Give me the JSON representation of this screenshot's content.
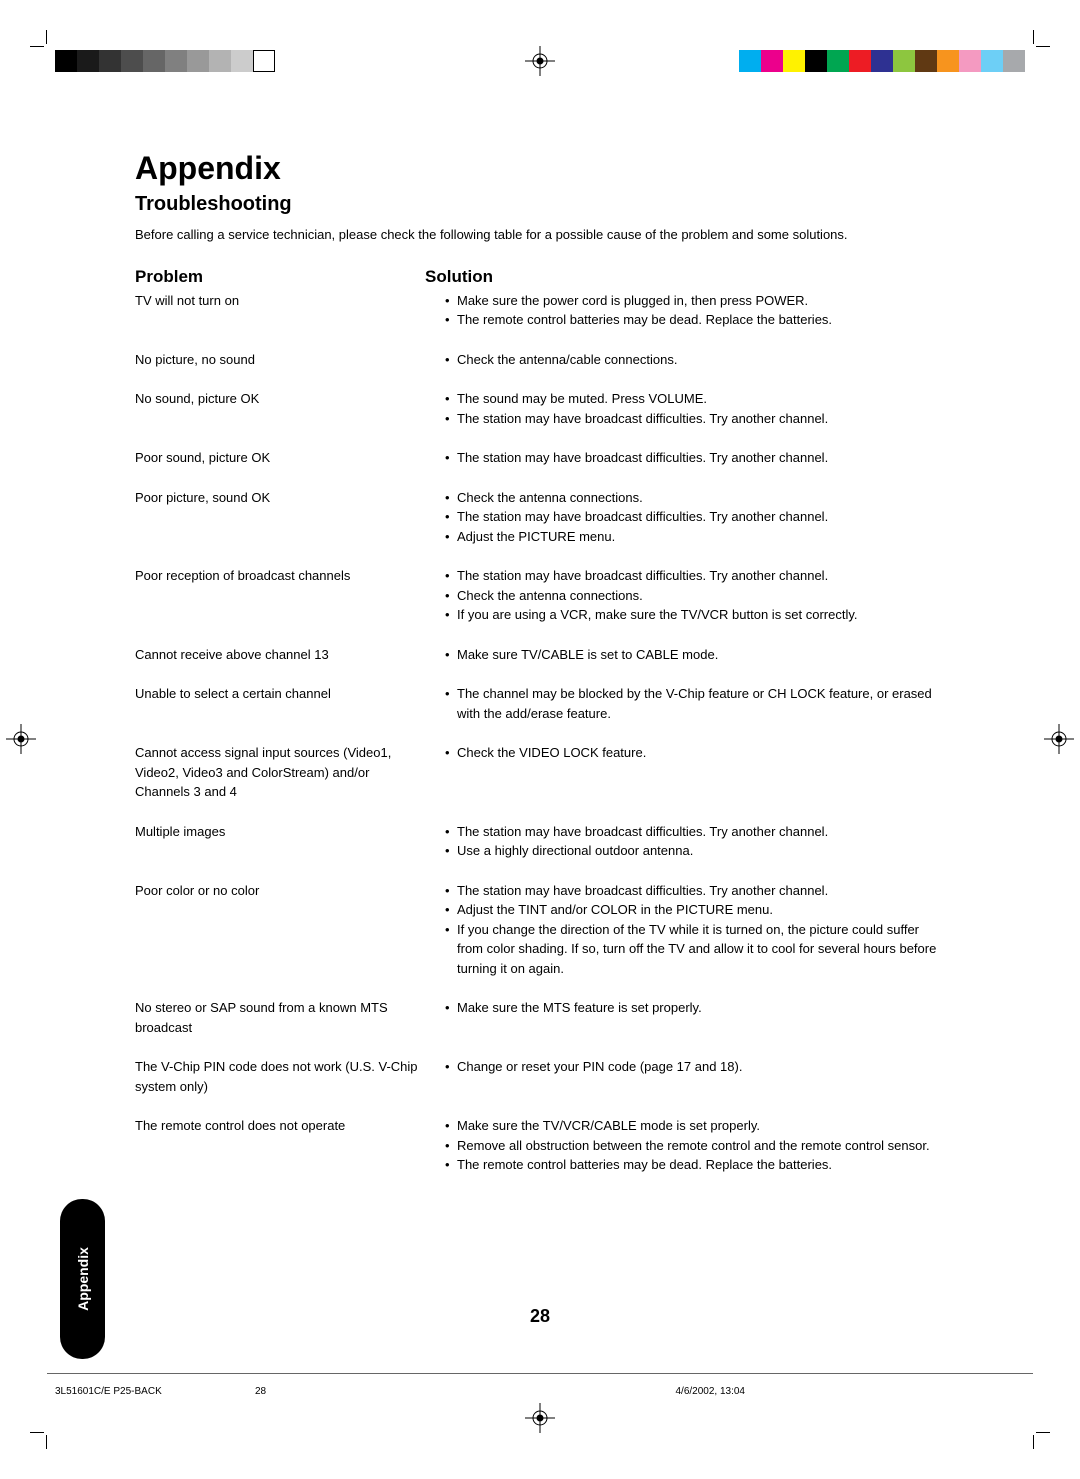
{
  "printer_marks": {
    "left_bar_colors": [
      "#000000",
      "#1a1a1a",
      "#333333",
      "#4d4d4d",
      "#666666",
      "#808080",
      "#999999",
      "#b3b3b3",
      "#cccccc",
      "#ffffff"
    ],
    "right_bar_colors": [
      "#00aeef",
      "#ec008c",
      "#fff200",
      "#000000",
      "#00a651",
      "#ed1c24",
      "#2e3192",
      "#8dc63f",
      "#603913",
      "#f7941e",
      "#f49ac1",
      "#6dcff6",
      "#a7a9ac"
    ]
  },
  "headings": {
    "title": "Appendix",
    "subtitle": "Troubleshooting",
    "intro": "Before calling a service technician, please check the following table for a possible cause of the problem and some solutions.",
    "problem_header": "Problem",
    "solution_header": "Solution"
  },
  "troubleshooting": [
    {
      "problem": "TV will not turn on",
      "solutions": [
        "Make sure the power cord is plugged in, then press POWER.",
        "The remote control batteries may be dead. Replace the batteries."
      ]
    },
    {
      "problem": "No picture, no sound",
      "solutions": [
        "Check the antenna/cable connections."
      ]
    },
    {
      "problem": "No sound, picture OK",
      "solutions": [
        "The sound may be muted. Press VOLUME.",
        "The station may have broadcast difficulties. Try another channel."
      ]
    },
    {
      "problem": "Poor sound, picture OK",
      "solutions": [
        "The station may have broadcast difficulties. Try another channel."
      ]
    },
    {
      "problem": "Poor picture, sound OK",
      "solutions": [
        "Check the antenna connections.",
        "The station may have broadcast difficulties. Try another channel.",
        "Adjust the PICTURE menu."
      ]
    },
    {
      "problem": "Poor reception of broadcast channels",
      "solutions": [
        "The station may have broadcast difficulties. Try another channel.",
        "Check the antenna connections.",
        "If you are using a VCR, make sure the TV/VCR button is set correctly."
      ]
    },
    {
      "problem": "Cannot receive above channel 13",
      "solutions": [
        "Make sure TV/CABLE is set to CABLE mode."
      ]
    },
    {
      "problem": "Unable to select a certain channel",
      "solutions": [
        "The channel may be blocked by the V-Chip feature or CH LOCK feature, or erased with the add/erase feature."
      ]
    },
    {
      "problem": "Cannot access signal input sources (Video1, Video2, Video3 and ColorStream) and/or Channels 3 and 4",
      "solutions": [
        "Check the VIDEO LOCK feature."
      ]
    },
    {
      "problem": "Multiple images",
      "solutions": [
        "The station may have broadcast difficulties. Try another channel.",
        "Use a highly directional outdoor antenna."
      ]
    },
    {
      "problem": "Poor color or no color",
      "solutions": [
        "The station may have broadcast difficulties. Try another channel.",
        "Adjust the TINT and/or COLOR in the PICTURE menu.",
        "If you change the direction of the TV while it is turned on, the picture could suffer from color shading. If so, turn off the TV and allow it to cool for several hours before turning it on again."
      ]
    },
    {
      "problem": "No stereo or SAP sound from a known MTS broadcast",
      "solutions": [
        "Make sure the MTS feature is set properly."
      ]
    },
    {
      "problem": "The V-Chip PIN code does not work (U.S. V-Chip system only)",
      "solutions": [
        "Change or reset your PIN code (page 17 and 18)."
      ]
    },
    {
      "problem": "The remote control does not operate",
      "solutions": [
        "Make sure the TV/VCR/CABLE mode is set properly.",
        "Remove all obstruction between the remote control and the remote control sensor.",
        "The remote control batteries may be dead. Replace the batteries."
      ]
    }
  ],
  "side_tab": {
    "label": "Appendix"
  },
  "page_number": "28",
  "footer": {
    "doc_id": "3L51601C/E P25-BACK",
    "page": "28",
    "datetime": "4/6/2002, 13:04"
  },
  "style": {
    "page_bg": "#ffffff",
    "text_color": "#000000",
    "title_fontsize": 32,
    "subtitle_fontsize": 20,
    "body_fontsize": 13,
    "header_fontsize": 17,
    "pagenum_fontsize": 18,
    "footer_fontsize": 10
  }
}
